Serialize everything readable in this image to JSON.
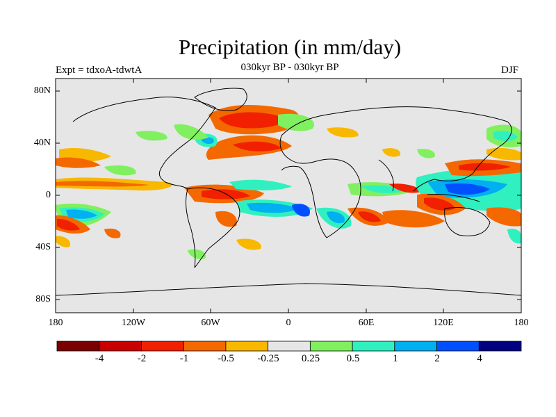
{
  "title": "Precipitation (in mm/day)",
  "subtitle_left": "Expt = tdxoA-tdwtA",
  "subtitle_center": "030kyr BP - 030kyr BP",
  "subtitle_right": "DJF",
  "axes": {
    "x_tick_labels": [
      "180",
      "120W",
      "60W",
      "0",
      "60E",
      "120E",
      "180"
    ],
    "y_tick_labels": [
      "80N",
      "40N",
      "0",
      "40S",
      "80S"
    ]
  },
  "colorbar": {
    "colors": [
      "#7a0000",
      "#c80000",
      "#f02000",
      "#f46800",
      "#f8b800",
      "#e6e6e6",
      "#80f060",
      "#30f0c0",
      "#00b0f0",
      "#0050ff",
      "#000080"
    ],
    "labels": [
      "-4",
      "-2",
      "-1",
      "-0.5",
      "-0.25",
      "0.25",
      "0.5",
      "1",
      "2",
      "4"
    ]
  },
  "colors": {
    "ocean_background": "#e6e6e6",
    "coastline": "#000000"
  }
}
